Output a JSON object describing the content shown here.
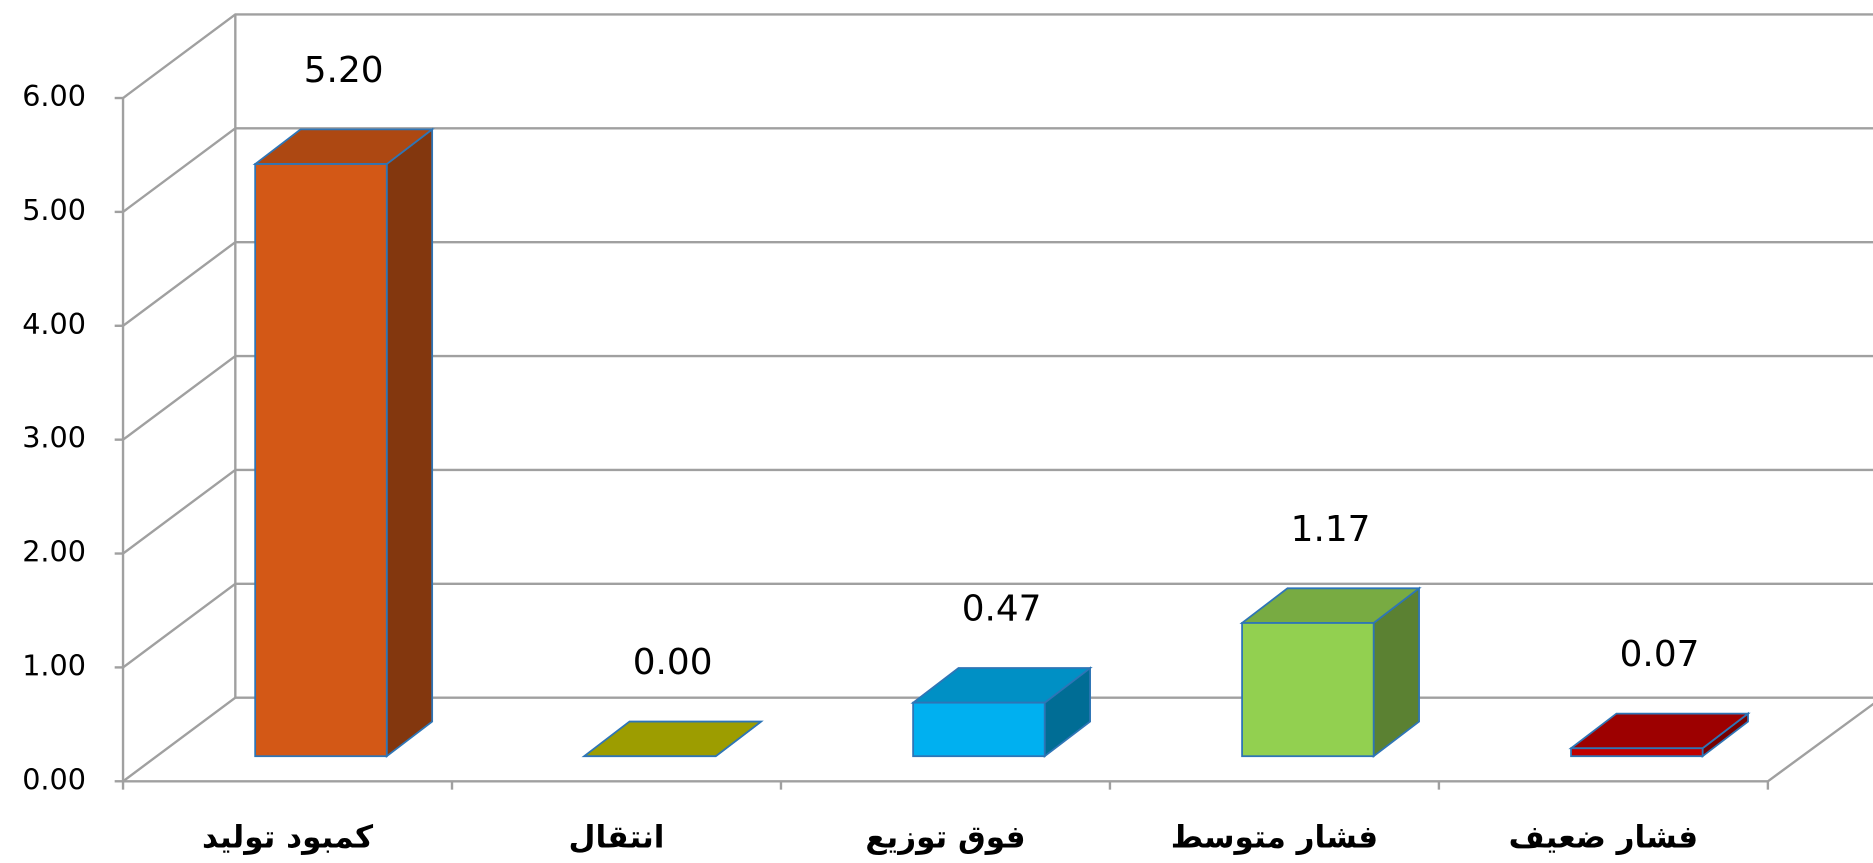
{
  "chart_data": {
    "type": "bar3d",
    "categories": [
      "کمبود تولید",
      "انتقال",
      "فوق توزیع",
      "فشار متوسط",
      "فشار ضعیف"
    ],
    "values": [
      5.2,
      0,
      0.47,
      1.17,
      0.07
    ],
    "value_labels": [
      "5.20",
      "0.00",
      "0.47",
      "1.17",
      "0.07"
    ],
    "colors": [
      "#d35816",
      "#c0c000",
      "#00b0f0",
      "#92d050",
      "#c00000"
    ],
    "ylim": [
      0,
      6
    ],
    "yticks": [
      {
        "value": 0,
        "label": "0.00"
      },
      {
        "value": 1,
        "label": "1.00"
      },
      {
        "value": 2,
        "label": "2.00"
      },
      {
        "value": 3,
        "label": "3.00"
      },
      {
        "value": 4,
        "label": "4.00"
      },
      {
        "value": 5,
        "label": "5.00"
      },
      {
        "value": 6,
        "label": "6.00"
      }
    ],
    "grid": true
  }
}
